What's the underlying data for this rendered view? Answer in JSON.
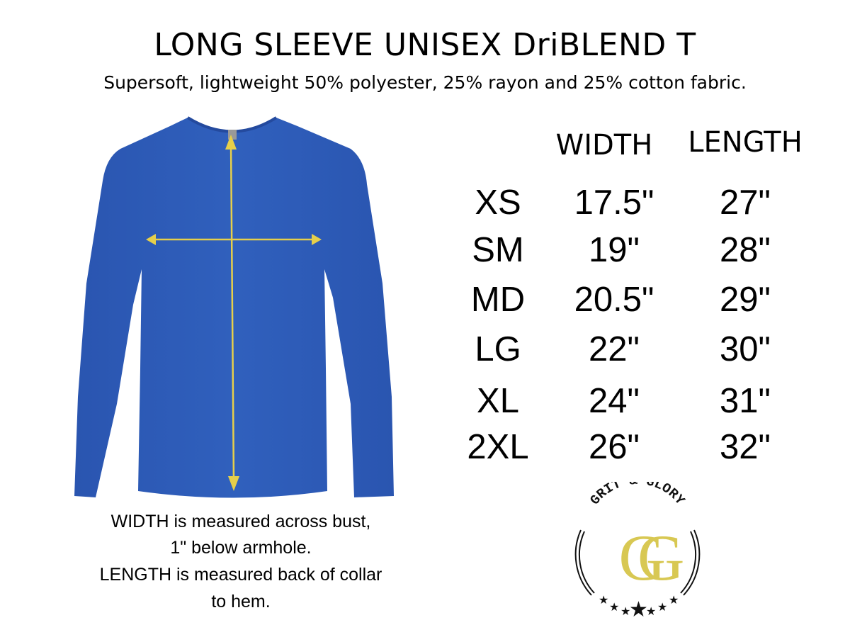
{
  "title": "LONG SLEEVE UNISEX DriBLEND T",
  "subtitle": "Supersoft, lightweight 50% polyester, 25% rayon and 25% cotton fabric.",
  "size_chart": {
    "headers": {
      "width": "WIDTH",
      "length": "LENGTH"
    },
    "rows": [
      {
        "size": "XS",
        "width": "17.5\"",
        "length": "27\""
      },
      {
        "size": "SM",
        "width": "19\"",
        "length": "28\""
      },
      {
        "size": "MD",
        "width": "20.5\"",
        "length": "29\""
      },
      {
        "size": "LG",
        "width": "22\"",
        "length": "30\""
      },
      {
        "size": "XL",
        "width": "24\"",
        "length": "31\""
      },
      {
        "size": "2XL",
        "width": "26\"",
        "length": "32\""
      }
    ]
  },
  "caption": [
    "WIDTH is measured across bust,",
    "1\" below armhole.",
    "LENGTH is measured back of collar",
    "to hem."
  ],
  "logo": {
    "text": "GRIT & GLORY",
    "monogram": "GG"
  },
  "colors": {
    "shirt": "#2f5bb8",
    "arrows": "#e6cf4a",
    "logo_gold": "#d8c853"
  }
}
